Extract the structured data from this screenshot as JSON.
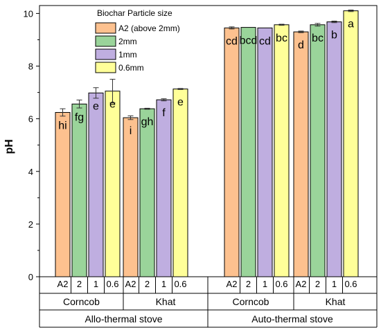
{
  "chart_data": {
    "type": "bar",
    "title": "",
    "xlabel": "",
    "ylabel": "pH",
    "ylim": [
      0,
      10.3
    ],
    "yticks": [
      0,
      2,
      4,
      6,
      8,
      10
    ],
    "grid": false,
    "legend": {
      "title": "Biochar Particle size",
      "position": "top-left",
      "entries": [
        {
          "name": "A2 (above 2mm)",
          "color": "#FDC18F"
        },
        {
          "name": "2mm",
          "color": "#9AD49A"
        },
        {
          "name": "1mm",
          "color": "#BFAEE0"
        },
        {
          "name": "0.6mm",
          "color": "#FFFF99"
        }
      ]
    },
    "stoves": [
      {
        "name": "Allo-thermal stove",
        "feedstocks": [
          {
            "name": "Corncob",
            "bars": [
              {
                "size": "A2",
                "value": 6.24,
                "error": 0.14,
                "letter": "hi"
              },
              {
                "size": "2",
                "value": 6.56,
                "error": 0.15,
                "letter": "fg"
              },
              {
                "size": "1",
                "value": 6.98,
                "error": 0.2,
                "letter": "e"
              },
              {
                "size": "0.6",
                "value": 7.05,
                "error": 0.45,
                "letter": "e"
              }
            ]
          },
          {
            "name": "Khat",
            "bars": [
              {
                "size": "A2",
                "value": 6.04,
                "error": 0.07,
                "letter": "i"
              },
              {
                "size": "2",
                "value": 6.38,
                "error": 0.02,
                "letter": "gh"
              },
              {
                "size": "1",
                "value": 6.72,
                "error": 0.04,
                "letter": "f"
              },
              {
                "size": "0.6",
                "value": 7.13,
                "error": 0.02,
                "letter": "e"
              }
            ]
          }
        ]
      },
      {
        "name": "Auto-thermal stove",
        "feedstocks": [
          {
            "name": "Corncob",
            "bars": [
              {
                "size": "A2",
                "value": 9.45,
                "error": 0.04,
                "letter": "cd"
              },
              {
                "size": "2",
                "value": 9.47,
                "error": 0.0,
                "letter": "bcd"
              },
              {
                "size": "1",
                "value": 9.45,
                "error": 0.0,
                "letter": "cd"
              },
              {
                "size": "0.6",
                "value": 9.57,
                "error": 0.02,
                "letter": "bc"
              }
            ]
          },
          {
            "name": "Khat",
            "bars": [
              {
                "size": "A2",
                "value": 9.3,
                "error": 0.03,
                "letter": "d"
              },
              {
                "size": "2",
                "value": 9.57,
                "error": 0.05,
                "letter": "bc"
              },
              {
                "size": "1",
                "value": 9.68,
                "error": 0.03,
                "letter": "b"
              },
              {
                "size": "0.6",
                "value": 10.1,
                "error": 0.03,
                "letter": "a"
              }
            ]
          }
        ]
      }
    ]
  }
}
